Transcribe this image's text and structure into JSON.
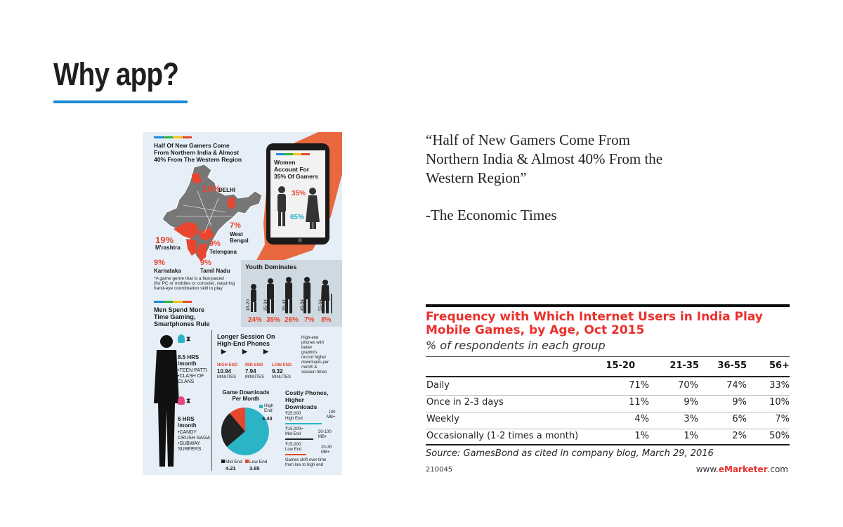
{
  "slide": {
    "title": "Why app?",
    "quote": "“Half of New Gamers Come From Northern India & Almost 40% From the Western Region”",
    "attribution": "-The Economic Times",
    "accent_color": "#1d8ad6"
  },
  "infographic": {
    "regions": {
      "headline": "Half Of New Gamers Come\nFrom Northern India & Almost\n40% From The Western Region",
      "labels": [
        {
          "pct": "16%",
          "name": "DELHI"
        },
        {
          "pct": "7%",
          "name": "West\nBengal"
        },
        {
          "pct": "19%",
          "name": "M'rashtra"
        },
        {
          "pct": "9%",
          "name": "Telengana"
        },
        {
          "pct": "9%",
          "name": "Karnataka"
        },
        {
          "pct": "9%",
          "name": "Tamil Nadu"
        }
      ],
      "footnote": "*A game genre that is a fast-paced\n(for PC or mobiles or console), requiring\nhand-eye coordination skill to play"
    },
    "women": {
      "headline": "Women\nAccount For\n35% Of Gamers",
      "pct_women": "35%",
      "pct_men": "65%"
    },
    "youth": {
      "headline": "Youth Dominates",
      "groups": [
        {
          "age": "18-20",
          "pct": "24%"
        },
        {
          "age": "25-34",
          "pct": "35%"
        },
        {
          "age": "35-44",
          "pct": "26%"
        },
        {
          "age": "45-54",
          "pct": "7%"
        },
        {
          "age": "55-64",
          "pct": "8%"
        }
      ]
    },
    "time": {
      "headline": "Men Spend More\nTime Gaming,\nSmartphones Rule",
      "men_hours": "8.5 HRS\n/month",
      "men_games": "•TEEN PATTI\n•CLASH OF\n  CLANS",
      "women_hours": "6 HRS\n/month",
      "women_games": "•CANDY\n  CRUSH SAGA\n•SUBWAY\n  SURFERS"
    },
    "sessions": {
      "headline": "Longer Session On\nHigh-End Phones",
      "note": "High-end\nphones with\nbetter\ngraphics\nrecord higher\ndownloads per\nmonth &\nsession times",
      "tiers": [
        {
          "label": "HIGH END",
          "value": "10.94",
          "unit": "MINUTES"
        },
        {
          "label": "MID END",
          "value": "7.94",
          "unit": "MINUTES"
        },
        {
          "label": "LOW END",
          "value": "9.32",
          "unit": "MINUTES"
        }
      ]
    },
    "downloads": {
      "headline": "Game Downloads\nPer Month",
      "high_label": "High\nEnd",
      "high_value": "4.43",
      "mid_label": "Mid End",
      "mid_value": "4.21",
      "low_label": "Low End",
      "low_value": "3.85",
      "color_high": "#2bb3c6",
      "color_mid": "#222222",
      "color_low": "#e8462f"
    },
    "costly": {
      "headline": "Costly Phones,\nHigher\nDownloads",
      "tiers": [
        {
          "price": "₹25,000\nHigh End",
          "mb": "100\nMB+"
        },
        {
          "price": "₹15,000+\nMid End",
          "mb": "30-100\nMB+"
        },
        {
          "price": "₹15,000\nLow End",
          "mb": "20-30\nMB+"
        }
      ],
      "footer": "Games shift over time\nfrom low to high end"
    }
  },
  "chart_data": {
    "type": "table",
    "title": "Frequency with Which Internet Users in India Play Mobile Games, by Age, Oct 2015",
    "subtitle": "% of respondents in each group",
    "columns": [
      "15-20",
      "21-35",
      "36-55",
      "56+"
    ],
    "rows": [
      {
        "label": "Daily",
        "values": [
          "71%",
          "70%",
          "74%",
          "33%"
        ]
      },
      {
        "label": "Once in 2-3 days",
        "values": [
          "11%",
          "9%",
          "9%",
          "10%"
        ]
      },
      {
        "label": "Weekly",
        "values": [
          "4%",
          "3%",
          "6%",
          "7%"
        ]
      },
      {
        "label": "Occasionally (1-2 times a month)",
        "values": [
          "1%",
          "1%",
          "2%",
          "50%"
        ]
      }
    ],
    "source": "Source: GamesBond as cited in company blog, March 29, 2016",
    "code": "210045",
    "brand_prefix": "www.",
    "brand_main": "eMarketer",
    "brand_suffix": ".com",
    "title_color": "#e8312c"
  }
}
